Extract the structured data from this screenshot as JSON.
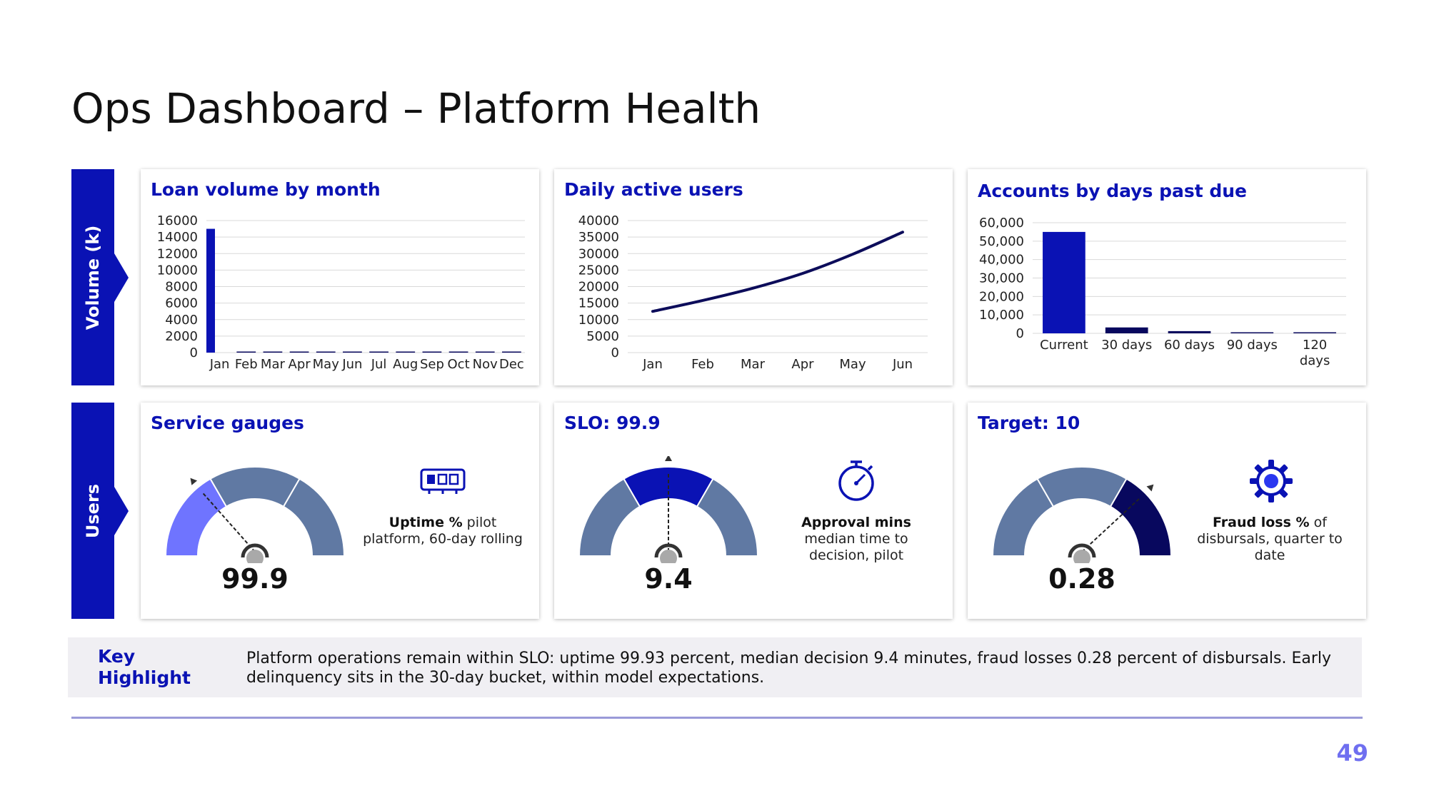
{
  "slide": {
    "title": "Ops Dashboard – Platform Health",
    "page_number": "49"
  },
  "bands": [
    {
      "label": "Volume (k)"
    },
    {
      "label": "Users"
    }
  ],
  "colors": {
    "brand": "#0a12b4",
    "navy": "#08085e",
    "slate": "#6079a3",
    "light_blue": "#6f74ff",
    "line": "#0c0c5a"
  },
  "cards": {
    "loan_volume": {
      "title": "Loan volume by month"
    },
    "dau": {
      "title": "Daily active users"
    },
    "dpd": {
      "title": "Accounts by days past due"
    },
    "gauge1": {
      "title": "Service gauges",
      "value": "99.9",
      "icon": "chip-icon",
      "kpi_bold": "Uptime %",
      "kpi_rest": " pilot platform, 60-day rolling",
      "needle_fraction": 0.28
    },
    "gauge2": {
      "title": "SLO: 99.9",
      "value": "9.4",
      "icon": "stopwatch-icon",
      "kpi_bold": "Approval mins",
      "kpi_rest": " median time to decision, pilot",
      "needle_fraction": 0.5
    },
    "gauge3": {
      "title": "Target: 10",
      "value": "0.28",
      "icon": "gear-icon",
      "kpi_bold": "Fraud loss %",
      "kpi_rest": " of disbursals, quarter to date",
      "needle_fraction": 0.75
    }
  },
  "key_highlight": {
    "label": "Key Highlight",
    "text": "Platform operations remain within SLO: uptime 99.93 percent, median decision 9.4 minutes, fraud losses 0.28 percent of disbursals. Early delinquency sits in the 30-day bucket, within model expectations."
  },
  "chart_data": [
    {
      "type": "bar",
      "title": "Loan volume by month",
      "categories": [
        "Jan",
        "Feb",
        "Mar",
        "Apr",
        "May",
        "Jun",
        "Jul",
        "Aug",
        "Sep",
        "Oct",
        "Nov",
        "Dec"
      ],
      "values": [
        15000,
        50,
        50,
        50,
        50,
        50,
        50,
        50,
        50,
        50,
        50,
        50
      ],
      "ylim": [
        0,
        16000
      ],
      "yticks": [
        "0",
        "2000",
        "4000",
        "6000",
        "8000",
        "10000",
        "12000",
        "14000",
        "16000"
      ],
      "grid": true
    },
    {
      "type": "line",
      "title": "Daily active users",
      "categories": [
        "Jan",
        "Feb",
        "Mar",
        "Apr",
        "May",
        "Jun"
      ],
      "values": [
        12500,
        15800,
        19500,
        24000,
        29800,
        36500
      ],
      "ylim": [
        0,
        40000
      ],
      "yticks": [
        "0",
        "5000",
        "10000",
        "15000",
        "20000",
        "25000",
        "30000",
        "35000",
        "40000"
      ],
      "grid": true
    },
    {
      "type": "bar",
      "title": "Accounts by days past due",
      "categories": [
        "Current",
        "30 days",
        "60 days",
        "90 days",
        "120 days"
      ],
      "category_lines": [
        [
          "Current"
        ],
        [
          "30 days"
        ],
        [
          "60 days"
        ],
        [
          "90 days"
        ],
        [
          "120",
          "days"
        ]
      ],
      "values": [
        55000,
        3200,
        1200,
        500,
        200
      ],
      "ylim": [
        0,
        60000
      ],
      "yticks": [
        "0",
        "10,000",
        "20,000",
        "30,000",
        "40,000",
        "50,000",
        "60,000"
      ],
      "grid": true
    }
  ]
}
